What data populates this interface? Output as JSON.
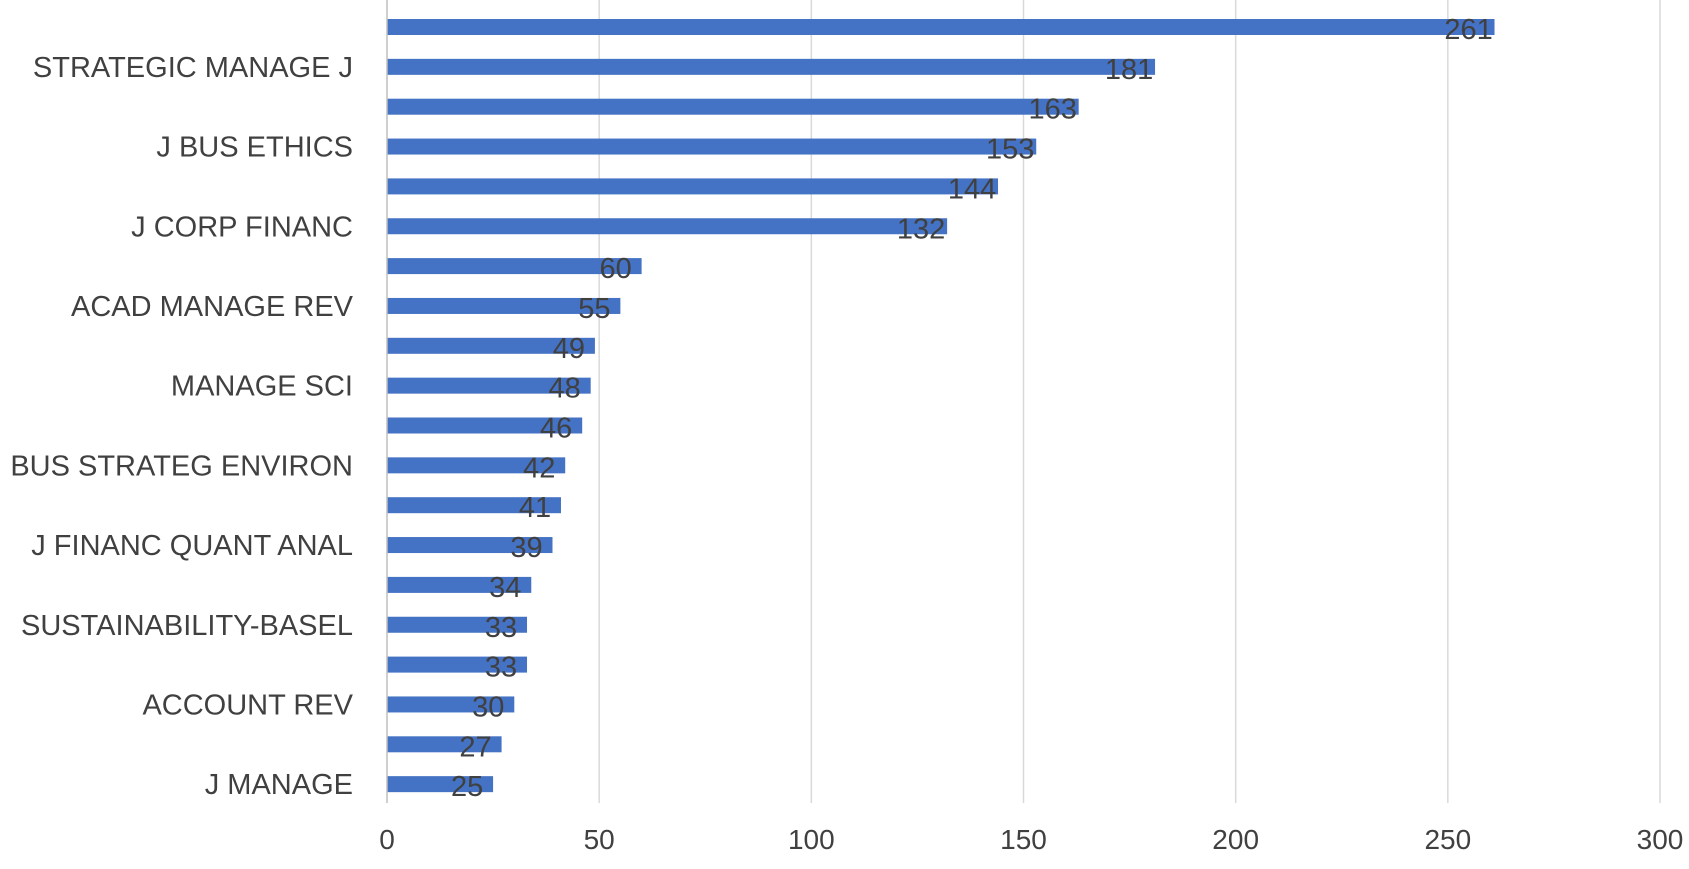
{
  "chart_data": {
    "type": "bar",
    "orientation": "horizontal",
    "title": "",
    "xlabel": "",
    "ylabel": "",
    "xlim": [
      0,
      300
    ],
    "x_ticks": [
      0,
      50,
      100,
      150,
      200,
      250,
      300
    ],
    "grid": "vertical",
    "legend": "none",
    "bar_color": "#4472C4",
    "categories": [
      "",
      "STRATEGIC MANAGE J",
      "",
      "J BUS ETHICS",
      "",
      "J CORP FINANC",
      "",
      "ACAD MANAGE REV",
      "",
      "MANAGE SCI",
      "",
      "BUS STRATEG ENVIRON",
      "",
      "J FINANC QUANT ANAL",
      "",
      "SUSTAINABILITY-BASEL",
      "",
      "ACCOUNT REV",
      "",
      "J MANAGE"
    ],
    "values": [
      261,
      181,
      163,
      153,
      144,
      132,
      60,
      55,
      49,
      48,
      46,
      42,
      41,
      39,
      34,
      33,
      33,
      30,
      27,
      25
    ],
    "data_labels": [
      "261",
      "181",
      "163",
      "153",
      "144",
      "132",
      "60",
      "55",
      "49",
      "48",
      "46",
      "42",
      "41",
      "39",
      "34",
      "33",
      "33",
      "30",
      "27",
      "25"
    ]
  }
}
